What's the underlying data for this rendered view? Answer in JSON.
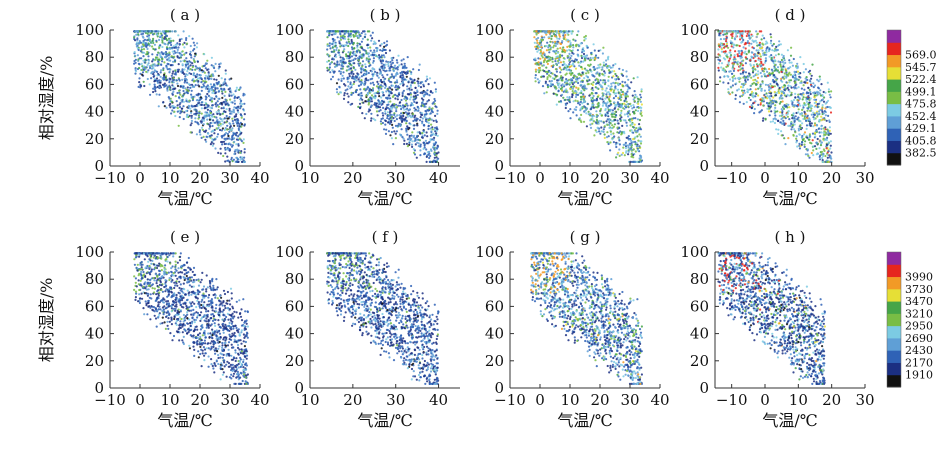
{
  "chart_data": {
    "type": "scatter",
    "xlabel": "气温/℃",
    "ylabel": "相对湿度/%",
    "ylim": [
      0,
      100
    ],
    "yticks": [
      0,
      20,
      40,
      60,
      80,
      100
    ],
    "rows": [
      {
        "colorbar": {
          "colors": [
            "#111111",
            "#1b2f82",
            "#2f62b6",
            "#5f9fd6",
            "#7ccbe3",
            "#79bd45",
            "#45a548",
            "#e6df36",
            "#f29a26",
            "#e6261f",
            "#8f2aa0"
          ],
          "tick_labels": [
            "382.5",
            "405.8",
            "429.1",
            "452.4",
            "475.8",
            "499.1",
            "522.4",
            "545.7",
            "569.0"
          ]
        },
        "panels": [
          {
            "label": "( a )",
            "xlim": [
              -10,
              40
            ],
            "xticks": [
              -10,
              0,
              10,
              20,
              30,
              40
            ],
            "xtick_labels": [
              "−10",
              "0",
              "10",
              "20",
              "30",
              "40"
            ],
            "temp_range": [
              -2,
              35
            ],
            "center_temp": 12,
            "hue_mix": [
              0.02,
              0.18,
              0.38,
              0.22,
              0.12,
              0.06,
              0.02,
              0,
              0,
              0,
              0
            ]
          },
          {
            "label": "( b )",
            "xlim": [
              10,
              45
            ],
            "xticks": [
              10,
              20,
              30,
              40
            ],
            "xtick_labels": [
              "10",
              "20",
              "30",
              "40"
            ],
            "temp_range": [
              14,
              40
            ],
            "center_temp": 26,
            "hue_mix": [
              0.02,
              0.22,
              0.42,
              0.18,
              0.1,
              0.05,
              0.01,
              0,
              0,
              0,
              0
            ]
          },
          {
            "label": "( c )",
            "xlim": [
              -10,
              40
            ],
            "xticks": [
              -10,
              0,
              10,
              20,
              30,
              40
            ],
            "xtick_labels": [
              "−10",
              "0",
              "10",
              "20",
              "30",
              "40"
            ],
            "temp_range": [
              -2,
              34
            ],
            "center_temp": 10,
            "hue_mix": [
              0,
              0.08,
              0.2,
              0.18,
              0.2,
              0.18,
              0.12,
              0.03,
              0.01,
              0,
              0
            ]
          },
          {
            "label": "( d )",
            "xlim": [
              -15,
              30
            ],
            "xticks": [
              -10,
              0,
              10,
              20,
              30
            ],
            "xtick_labels": [
              "−10",
              "0",
              "10",
              "20",
              "30"
            ],
            "temp_range": [
              -14,
              20
            ],
            "center_temp": 0,
            "hue_mix": [
              0,
              0.08,
              0.18,
              0.2,
              0.22,
              0.14,
              0.1,
              0.04,
              0.02,
              0.02,
              0
            ]
          }
        ]
      },
      {
        "colorbar": {
          "colors": [
            "#111111",
            "#1b2f82",
            "#2f62b6",
            "#5f9fd6",
            "#7ccbe3",
            "#79bd45",
            "#45a548",
            "#e6df36",
            "#f29a26",
            "#e6261f",
            "#8f2aa0"
          ],
          "tick_labels": [
            "1910",
            "2170",
            "2430",
            "2690",
            "2950",
            "3210",
            "3470",
            "3730",
            "3990"
          ]
        },
        "panels": [
          {
            "label": "( e )",
            "xlim": [
              -10,
              40
            ],
            "xticks": [
              -10,
              0,
              10,
              20,
              30,
              40
            ],
            "xtick_labels": [
              "−10",
              "0",
              "10",
              "20",
              "30",
              "40"
            ],
            "temp_range": [
              -2,
              36
            ],
            "center_temp": 14,
            "hue_mix": [
              0.02,
              0.42,
              0.34,
              0.14,
              0.06,
              0.02,
              0,
              0,
              0,
              0,
              0
            ]
          },
          {
            "label": "( f )",
            "xlim": [
              10,
              45
            ],
            "xticks": [
              10,
              20,
              30,
              40
            ],
            "xtick_labels": [
              "10",
              "20",
              "30",
              "40"
            ],
            "temp_range": [
              14,
              40
            ],
            "center_temp": 27,
            "hue_mix": [
              0.02,
              0.38,
              0.36,
              0.16,
              0.06,
              0.02,
              0,
              0,
              0,
              0,
              0
            ]
          },
          {
            "label": "( g )",
            "xlim": [
              -10,
              40
            ],
            "xticks": [
              -10,
              0,
              10,
              20,
              30,
              40
            ],
            "xtick_labels": [
              "−10",
              "0",
              "10",
              "20",
              "30",
              "40"
            ],
            "temp_range": [
              -3,
              34
            ],
            "center_temp": 10,
            "hue_mix": [
              0,
              0.22,
              0.3,
              0.2,
              0.14,
              0.08,
              0.04,
              0.01,
              0.01,
              0,
              0
            ]
          },
          {
            "label": "( h )",
            "xlim": [
              -15,
              30
            ],
            "xticks": [
              -10,
              0,
              10,
              20,
              30
            ],
            "xtick_labels": [
              "−10",
              "0",
              "10",
              "20",
              "30"
            ],
            "temp_range": [
              -14,
              18
            ],
            "center_temp": 0,
            "hue_mix": [
              0.02,
              0.34,
              0.28,
              0.16,
              0.1,
              0.05,
              0.02,
              0.01,
              0.01,
              0.01,
              0
            ]
          }
        ]
      }
    ]
  }
}
